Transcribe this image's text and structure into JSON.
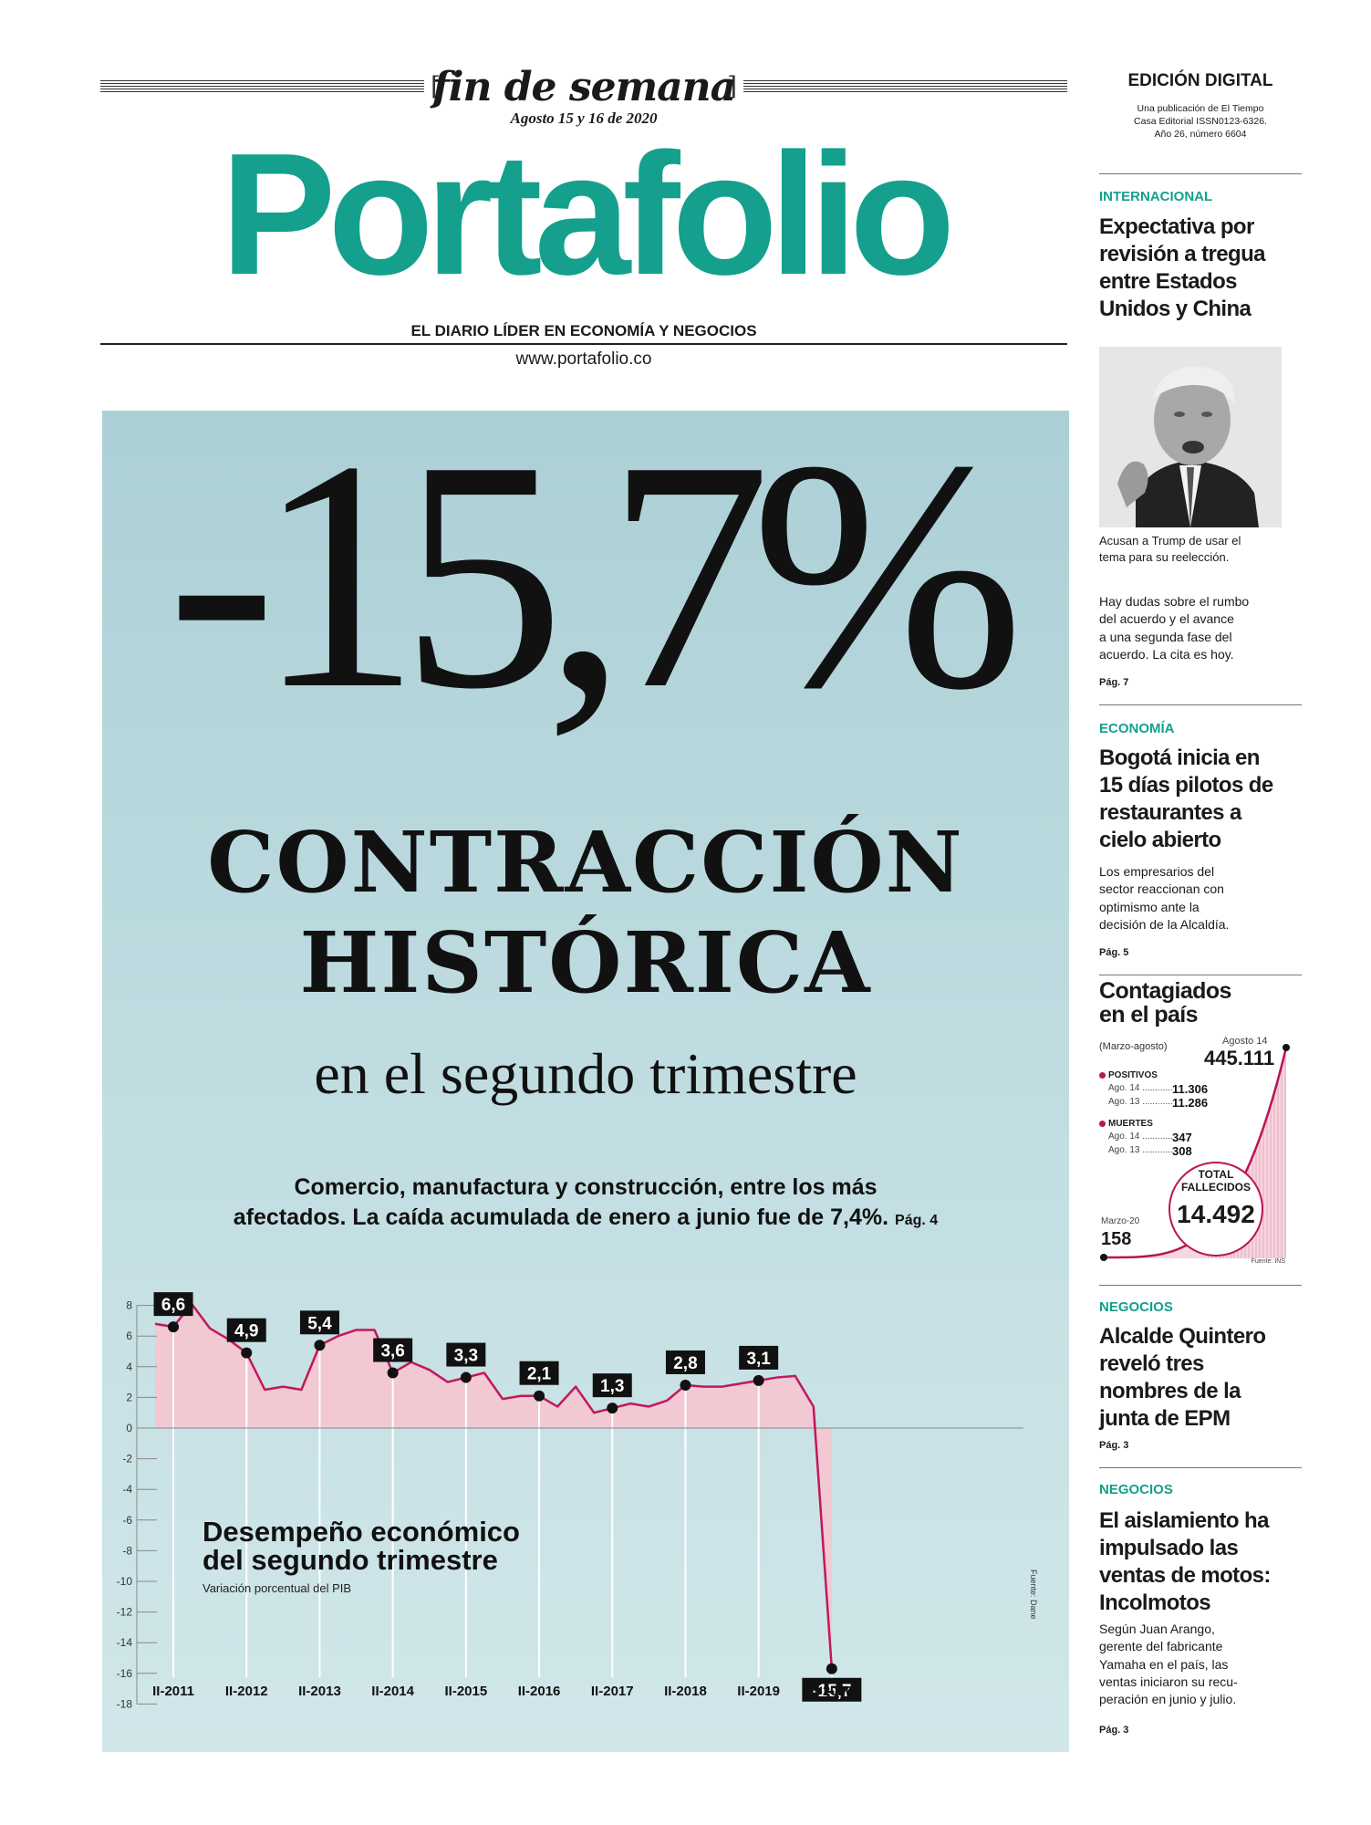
{
  "masthead": {
    "weekend_label": "fin de semana",
    "date": "Agosto 15 y 16 de 2020",
    "logo": "Portafolio",
    "tagline": "EL DIARIO LÍDER EN ECONOMÍA Y NEGOCIOS",
    "url": "www.portafolio.co",
    "brand_color": "#14a08d"
  },
  "edition": {
    "label": "EDICIÓN DIGITAL",
    "pub_lines": [
      "Una publicación de El Tiempo",
      "Casa Editorial ISSN0123-6326.",
      "Año 26, número 6604"
    ]
  },
  "hero": {
    "big_figure": "-15,7%",
    "headline_lines": [
      "CONTRACCIÓN",
      "HISTÓRICA"
    ],
    "subhead": "en el segundo trimestre",
    "deck_lines": [
      "Comercio, manufactura y construcción, entre los más",
      "afectados. La caída acumulada de enero a junio fue de 7,4%."
    ],
    "deck_page": "Pág. 4"
  },
  "chart_data": {
    "type": "area",
    "title_lines": [
      "Desempeño económico",
      "del segundo trimestre"
    ],
    "subtitle": "Variación porcentual del PIB",
    "source": "Fuente: Dane",
    "ylim": [
      -18,
      8
    ],
    "yticks": [
      8,
      6,
      4,
      2,
      0,
      -2,
      -4,
      -6,
      -8,
      -10,
      -12,
      -14,
      -16,
      -18
    ],
    "series_values": [
      6.8,
      6.6,
      8.1,
      6.5,
      5.8,
      4.9,
      2.5,
      2.7,
      2.5,
      5.4,
      6.0,
      6.4,
      6.4,
      3.6,
      4.3,
      3.8,
      3.0,
      3.3,
      3.6,
      1.9,
      2.1,
      2.1,
      1.4,
      2.7,
      1.0,
      1.3,
      1.6,
      1.4,
      1.8,
      2.8,
      2.7,
      2.7,
      2.9,
      3.1,
      3.3,
      3.4,
      1.4,
      -15.7
    ],
    "labeled_points": [
      {
        "index": 1,
        "label": "II-2011",
        "value": "6,6"
      },
      {
        "index": 5,
        "label": "II-2012",
        "value": "4,9"
      },
      {
        "index": 9,
        "label": "II-2013",
        "value": "5,4"
      },
      {
        "index": 13,
        "label": "II-2014",
        "value": "3,6"
      },
      {
        "index": 17,
        "label": "II-2015",
        "value": "3,3"
      },
      {
        "index": 21,
        "label": "II-2016",
        "value": "2,1"
      },
      {
        "index": 25,
        "label": "II-2017",
        "value": "1,3"
      },
      {
        "index": 29,
        "label": "II-2018",
        "value": "2,8"
      },
      {
        "index": 33,
        "label": "II-2019",
        "value": "3,1"
      },
      {
        "index": 37,
        "label": "II-2020",
        "value": "-15,7"
      }
    ],
    "colors": {
      "line": "#c2185b",
      "fill": "#f2c8d2",
      "grid": "#ffffff",
      "marker": "#111111"
    }
  },
  "sidebar": {
    "international": {
      "section": "INTERNACIONAL",
      "headline_lines": [
        "Expectativa por",
        "revisión a tregua",
        "entre Estados",
        "Unidos y China"
      ],
      "caption_lines": [
        "Acusan a Trump de usar el",
        "tema para su reelección."
      ],
      "text_lines": [
        "Hay dudas sobre el rumbo",
        "del acuerdo y el avance",
        "a una segunda fase del",
        "acuerdo. La cita es hoy."
      ],
      "page": "Pág. 7"
    },
    "economy": {
      "section": "ECONOMÍA",
      "headline_lines": [
        "Bogotá inicia en",
        "15 días pilotos de",
        "restaurantes a",
        "cielo abierto"
      ],
      "text_lines": [
        "Los empresarios del",
        "sector reaccionan con",
        "optimismo ante la",
        "decisión de la Alcaldía."
      ],
      "page": "Pág. 5"
    },
    "covid": {
      "title_lines": [
        "Contagiados",
        "en el país"
      ],
      "period": "(Marzo-agosto)",
      "latest_date": "Agosto 14",
      "latest_total": "445.111",
      "positives_label": "POSITIVOS",
      "positives": [
        {
          "date": "Ago. 14",
          "value": "11.306"
        },
        {
          "date": "Ago. 13",
          "value": "11.286"
        }
      ],
      "deaths_label": "MUERTES",
      "deaths": [
        {
          "date": "Ago. 14",
          "value": "347"
        },
        {
          "date": "Ago. 13",
          "value": "308"
        }
      ],
      "total_deaths_label_lines": [
        "TOTAL",
        "FALLECIDOS"
      ],
      "total_deaths": "14.492",
      "start_label": "Marzo-20",
      "start_value": "158",
      "source": "Fuente: INS"
    },
    "business1": {
      "section": "NEGOCIOS",
      "headline_lines": [
        "Alcalde Quintero",
        "reveló tres",
        "nombres de la",
        "junta de EPM"
      ],
      "page": "Pág. 3"
    },
    "business2": {
      "section": "NEGOCIOS",
      "headline_lines": [
        "El aislamiento ha",
        "impulsado las",
        "ventas de motos:",
        "Incolmotos"
      ],
      "text_lines": [
        "Según Juan Arango,",
        "gerente del fabricante",
        "Yamaha en el país, las",
        "ventas iniciaron su recu-",
        "peración en junio y julio."
      ],
      "page": "Pág. 3"
    }
  }
}
